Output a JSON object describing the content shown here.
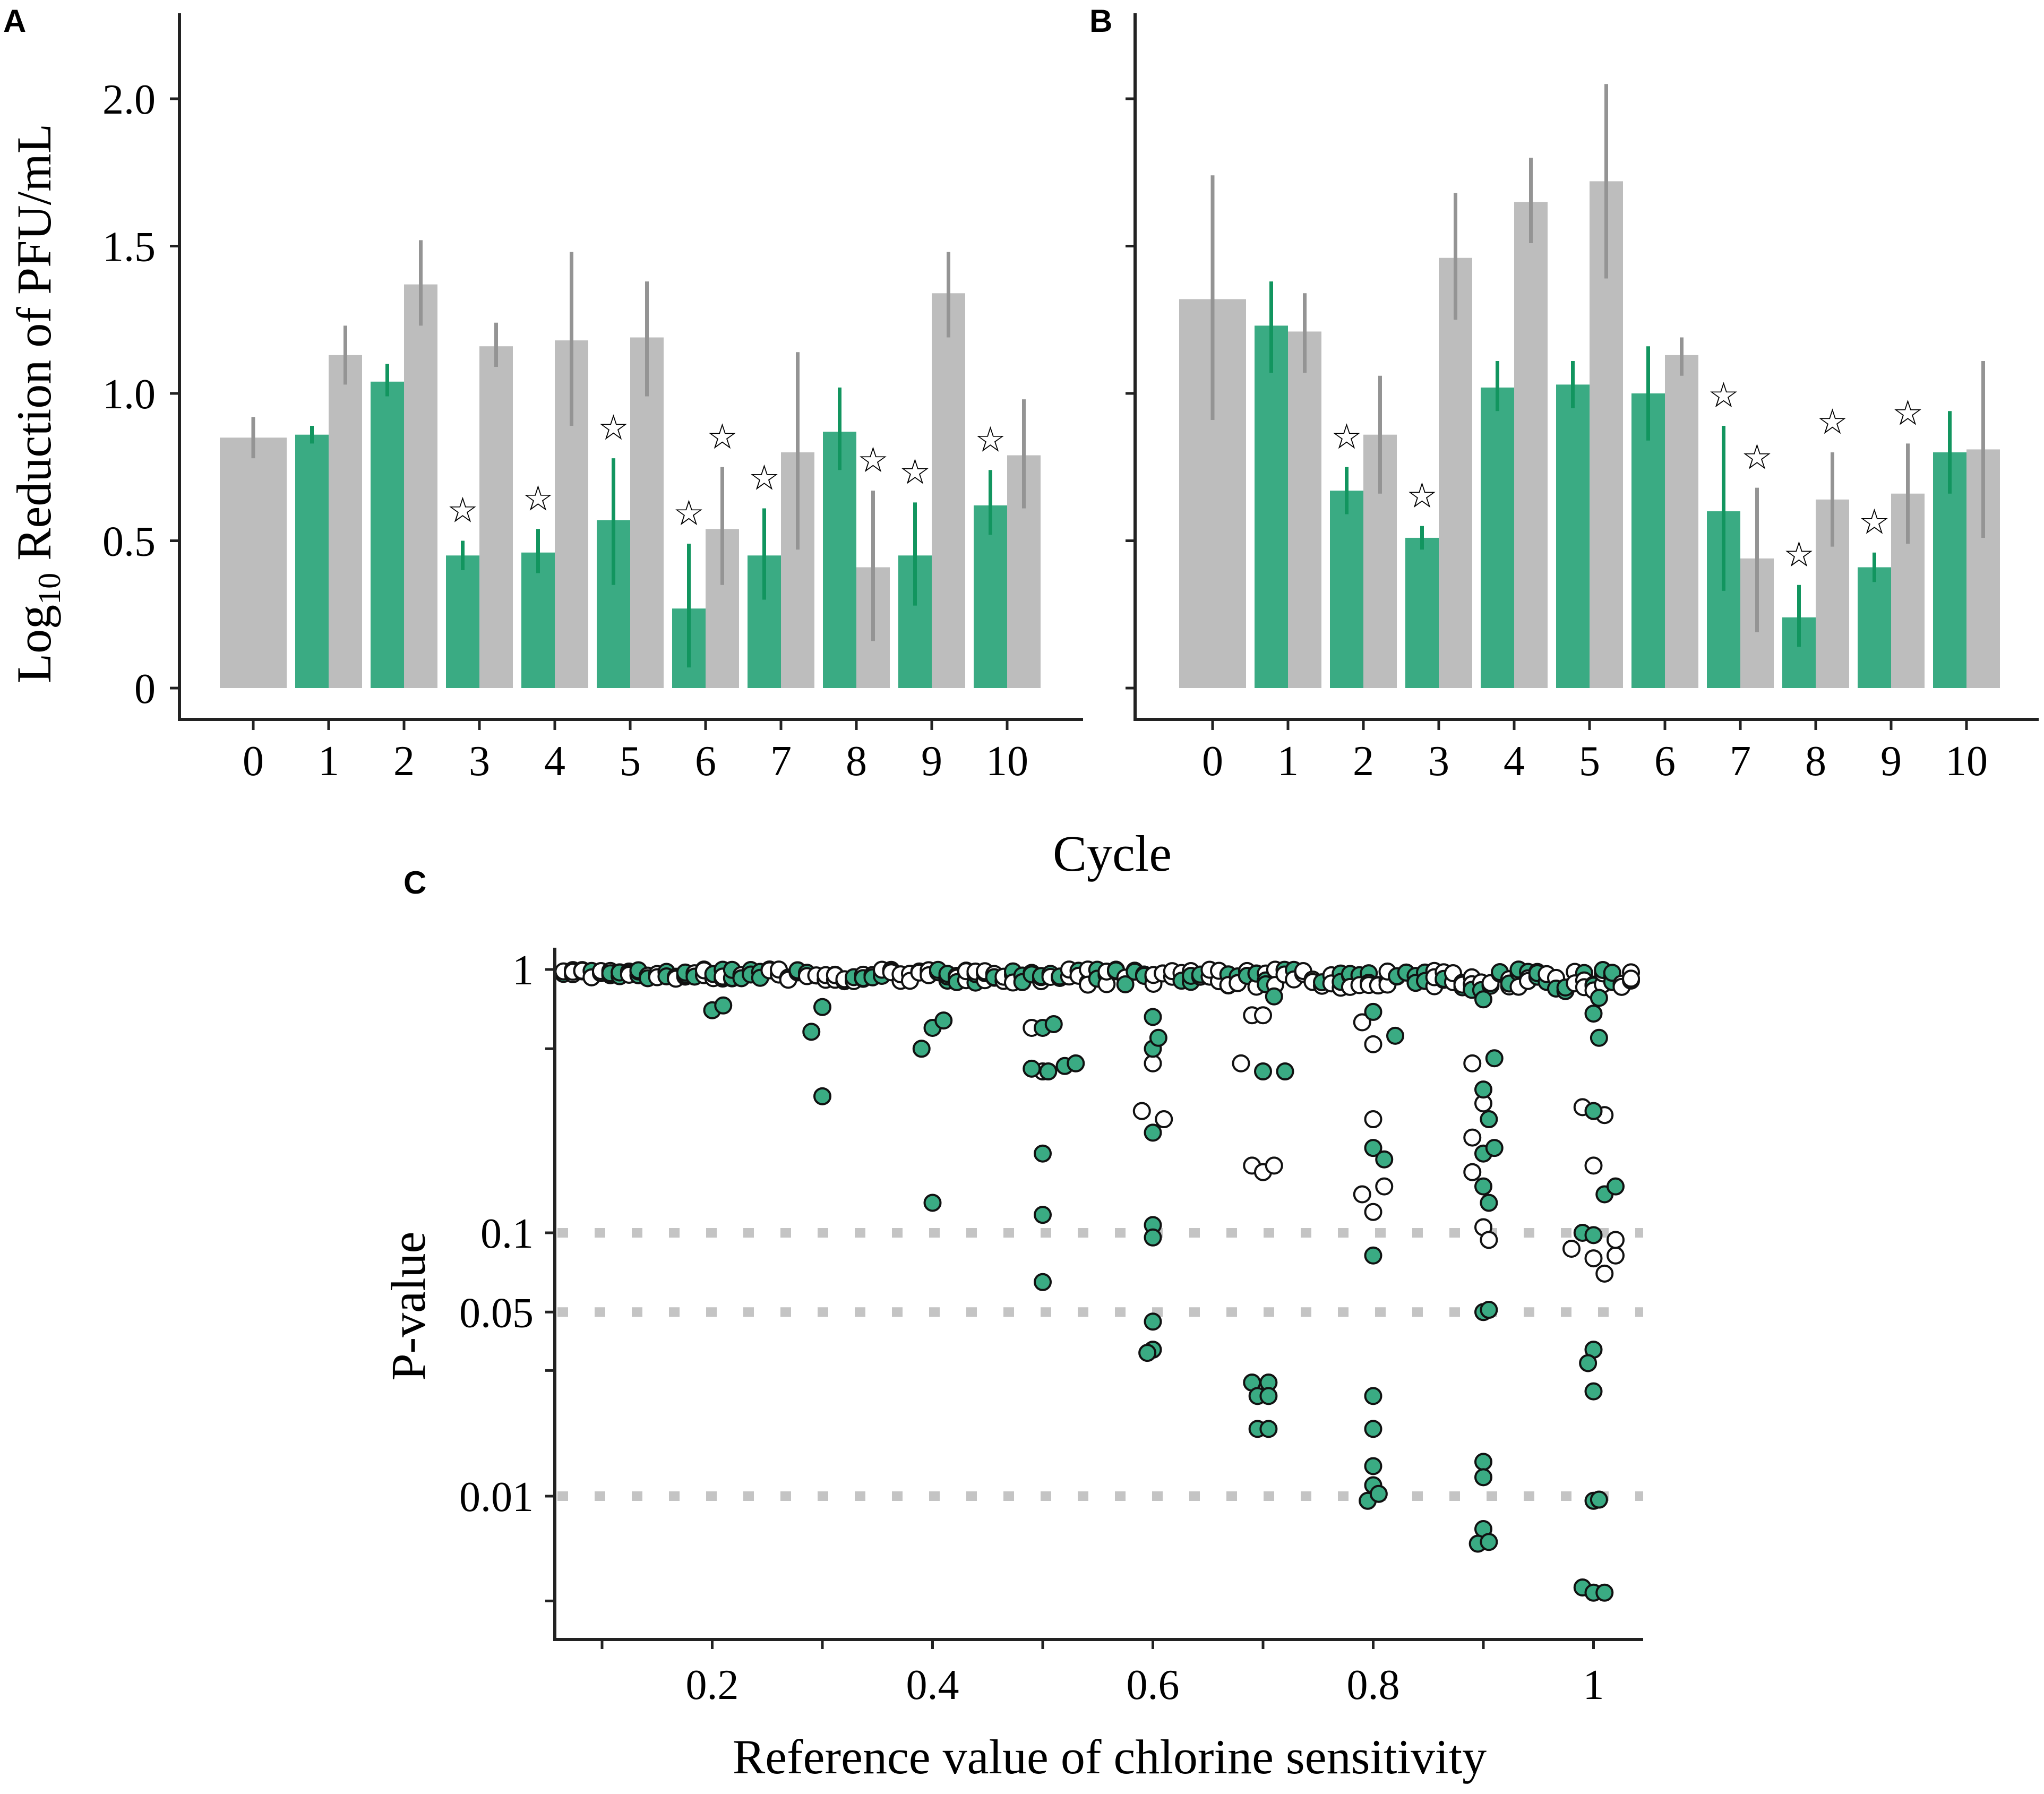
{
  "colors": {
    "green": "#3aab83",
    "gray": "#bdbdbd",
    "err_green": "#12955f",
    "err_gray": "#949494",
    "star": "#000000",
    "ref_line": "#c4c4c4"
  },
  "shared": {
    "xlabel": "Cycle",
    "star_symbol": "☆"
  },
  "chart_data": [
    {
      "panel": "A",
      "type": "bar",
      "ylabel_base": "Log",
      "ylabel_sub": "10",
      "ylabel_rest": " Reduction of PFU/mL",
      "ylim": [
        0,
        2.3
      ],
      "yticks": [
        0,
        0.5,
        1.0,
        1.5,
        2.0
      ],
      "ytick_labels": [
        "0",
        "0.5",
        "1.0",
        "1.5",
        "2.0"
      ],
      "categories": [
        "0",
        "1",
        "2",
        "3",
        "4",
        "5",
        "6",
        "7",
        "8",
        "9",
        "10"
      ],
      "series": [
        {
          "name": "green",
          "values": [
            null,
            0.86,
            1.04,
            0.45,
            0.46,
            0.57,
            0.27,
            0.45,
            0.87,
            0.45,
            0.62
          ],
          "err": [
            null,
            [
              0.83,
              0.89
            ],
            [
              0.99,
              1.1
            ],
            [
              0.4,
              0.5
            ],
            [
              0.39,
              0.54
            ],
            [
              0.35,
              0.78
            ],
            [
              0.07,
              0.49
            ],
            [
              0.3,
              0.61
            ],
            [
              0.74,
              1.02
            ],
            [
              0.28,
              0.63
            ],
            [
              0.52,
              0.74
            ]
          ],
          "stars": [
            false,
            false,
            false,
            true,
            true,
            true,
            true,
            true,
            false,
            true,
            true
          ]
        },
        {
          "name": "gray",
          "values": [
            0.85,
            1.13,
            1.37,
            1.16,
            1.18,
            1.19,
            0.54,
            0.8,
            0.41,
            1.34,
            0.79
          ],
          "err": [
            [
              0.78,
              0.92
            ],
            [
              1.03,
              1.23
            ],
            [
              1.23,
              1.52
            ],
            [
              1.09,
              1.24
            ],
            [
              0.89,
              1.48
            ],
            [
              0.99,
              1.38
            ],
            [
              0.35,
              0.75
            ],
            [
              0.47,
              1.14
            ],
            [
              0.16,
              0.67
            ],
            [
              1.19,
              1.48
            ],
            [
              0.61,
              0.98
            ]
          ],
          "stars": [
            false,
            false,
            false,
            false,
            false,
            false,
            true,
            false,
            true,
            false,
            false
          ]
        }
      ]
    },
    {
      "panel": "B",
      "type": "bar",
      "ylim": [
        0,
        2.3
      ],
      "yticks": [
        0,
        0.5,
        1.0,
        1.5,
        2.0
      ],
      "categories": [
        "0",
        "1",
        "2",
        "3",
        "4",
        "5",
        "6",
        "7",
        "8",
        "9",
        "10"
      ],
      "series": [
        {
          "name": "green",
          "values": [
            null,
            1.23,
            0.67,
            0.51,
            1.02,
            1.03,
            1.0,
            0.6,
            0.24,
            0.41,
            0.8
          ],
          "err": [
            null,
            [
              1.07,
              1.38
            ],
            [
              0.59,
              0.75
            ],
            [
              0.47,
              0.55
            ],
            [
              0.94,
              1.11
            ],
            [
              0.95,
              1.11
            ],
            [
              0.84,
              1.16
            ],
            [
              0.33,
              0.89
            ],
            [
              0.14,
              0.35
            ],
            [
              0.36,
              0.46
            ],
            [
              0.66,
              0.94
            ]
          ],
          "stars": [
            false,
            false,
            true,
            true,
            false,
            false,
            false,
            true,
            true,
            true,
            false
          ]
        },
        {
          "name": "gray",
          "values": [
            1.32,
            1.21,
            0.86,
            1.46,
            1.65,
            1.72,
            1.13,
            0.44,
            0.64,
            0.66,
            0.81
          ],
          "err": [
            [
              0.91,
              1.74
            ],
            [
              1.07,
              1.34
            ],
            [
              0.66,
              1.06
            ],
            [
              1.25,
              1.68
            ],
            [
              1.51,
              1.8
            ],
            [
              1.39,
              2.05
            ],
            [
              1.06,
              1.19
            ],
            [
              0.19,
              0.68
            ],
            [
              0.48,
              0.8
            ],
            [
              0.49,
              0.83
            ],
            [
              0.51,
              1.11
            ]
          ],
          "stars": [
            false,
            false,
            false,
            false,
            false,
            false,
            false,
            true,
            true,
            true,
            false
          ]
        }
      ]
    },
    {
      "panel": "C",
      "type": "scatter",
      "xlabel": "Reference value of  chlorine sensitivity",
      "ylabel": "P-value",
      "xlim": [
        0.06,
        1.04
      ],
      "xticks": [
        0.1,
        0.2,
        0.3,
        0.4,
        0.5,
        0.6,
        0.7,
        0.8,
        0.9,
        1.0
      ],
      "xtick_labels": [
        "0.2",
        "0.4",
        "0.6",
        "0.8",
        "1"
      ],
      "ylim": [
        0.003,
        1.05
      ],
      "ytick_labels": [
        "1",
        "0.1",
        "0.05",
        "0.01"
      ],
      "ytick_values": [
        1,
        0.1,
        0.05,
        0.01
      ],
      "minor_yticks": [
        0.5,
        0.03,
        0.004
      ],
      "ref_lines": [
        0.1,
        0.05,
        0.01
      ],
      "series": [
        {
          "name": "significant (green)",
          "points": [
            [
              0.3,
              0.33
            ],
            [
              0.4,
              0.13
            ],
            [
              0.5,
              0.2
            ],
            [
              0.5,
              0.117
            ],
            [
              0.5,
              0.065
            ],
            [
              0.6,
              0.107
            ],
            [
              0.6,
              0.096
            ],
            [
              0.6,
              0.046
            ],
            [
              0.6,
              0.036
            ],
            [
              0.595,
              0.035
            ],
            [
              0.6,
              0.24
            ],
            [
              0.69,
              0.027
            ],
            [
              0.705,
              0.027
            ],
            [
              0.695,
              0.024
            ],
            [
              0.705,
              0.024
            ],
            [
              0.695,
              0.018
            ],
            [
              0.705,
              0.018
            ],
            [
              0.8,
              0.024
            ],
            [
              0.8,
              0.018
            ],
            [
              0.8,
              0.013
            ],
            [
              0.8,
              0.011
            ],
            [
              0.795,
              0.0096
            ],
            [
              0.805,
              0.0102
            ],
            [
              0.8,
              0.082
            ],
            [
              0.9,
              0.05
            ],
            [
              0.905,
              0.051
            ],
            [
              0.9,
              0.0135
            ],
            [
              0.9,
              0.0118
            ],
            [
              0.9,
              0.0075
            ],
            [
              0.895,
              0.0066
            ],
            [
              0.905,
              0.0067
            ],
            [
              1.0,
              0.036
            ],
            [
              0.995,
              0.032
            ],
            [
              1.0,
              0.025
            ],
            [
              1.0,
              0.0096
            ],
            [
              1.005,
              0.0097
            ],
            [
              0.99,
              0.0045
            ],
            [
              1.0,
              0.0043
            ],
            [
              1.01,
              0.0043
            ],
            [
              0.49,
              0.42
            ],
            [
              0.505,
              0.41
            ],
            [
              0.52,
              0.43
            ],
            [
              0.53,
              0.44
            ],
            [
              0.5,
              0.6
            ],
            [
              0.51,
              0.62
            ],
            [
              0.6,
              0.5
            ],
            [
              0.605,
              0.55
            ],
            [
              0.6,
              0.66
            ],
            [
              0.7,
              0.41
            ],
            [
              0.72,
              0.41
            ],
            [
              0.71,
              0.79
            ],
            [
              0.8,
              0.21
            ],
            [
              0.81,
              0.19
            ],
            [
              0.8,
              0.69
            ],
            [
              0.82,
              0.56
            ],
            [
              0.9,
              0.35
            ],
            [
              0.905,
              0.27
            ],
            [
              0.9,
              0.2
            ],
            [
              0.91,
              0.21
            ],
            [
              0.9,
              0.15
            ],
            [
              0.905,
              0.13
            ],
            [
              0.91,
              0.46
            ],
            [
              0.9,
              0.77
            ],
            [
              1.0,
              0.29
            ],
            [
              1.01,
              0.14
            ],
            [
              0.99,
              0.1
            ],
            [
              1.0,
              0.098
            ],
            [
              1.02,
              0.15
            ],
            [
              1.0,
              0.68
            ],
            [
              1.005,
              0.55
            ],
            [
              1.005,
              0.78
            ],
            [
              0.2,
              0.7
            ],
            [
              0.21,
              0.73
            ],
            [
              0.39,
              0.5
            ],
            [
              0.4,
              0.6
            ],
            [
              0.41,
              0.64
            ],
            [
              0.29,
              0.58
            ],
            [
              0.3,
              0.72
            ]
          ]
        },
        {
          "name": "not significant (white)",
          "points": [
            [
              0.5,
              0.41
            ],
            [
              0.49,
              0.6
            ],
            [
              0.6,
              0.44
            ],
            [
              0.59,
              0.29
            ],
            [
              0.61,
              0.27
            ],
            [
              0.69,
              0.18
            ],
            [
              0.7,
              0.17
            ],
            [
              0.71,
              0.18
            ],
            [
              0.68,
              0.44
            ],
            [
              0.69,
              0.67
            ],
            [
              0.7,
              0.67
            ],
            [
              0.8,
              0.27
            ],
            [
              0.79,
              0.14
            ],
            [
              0.8,
              0.12
            ],
            [
              0.81,
              0.15
            ],
            [
              0.8,
              0.52
            ],
            [
              0.79,
              0.63
            ],
            [
              0.89,
              0.44
            ],
            [
              0.9,
              0.31
            ],
            [
              0.89,
              0.17
            ],
            [
              0.9,
              0.105
            ],
            [
              0.905,
              0.094
            ],
            [
              0.89,
              0.23
            ],
            [
              0.99,
              0.3
            ],
            [
              1.01,
              0.28
            ],
            [
              1.0,
              0.18
            ],
            [
              0.98,
              0.087
            ],
            [
              1.0,
              0.08
            ],
            [
              1.01,
              0.07
            ],
            [
              1.02,
              0.082
            ],
            [
              1.02,
              0.094
            ]
          ]
        }
      ]
    }
  ],
  "panel_labels": [
    "A",
    "B",
    "C"
  ]
}
